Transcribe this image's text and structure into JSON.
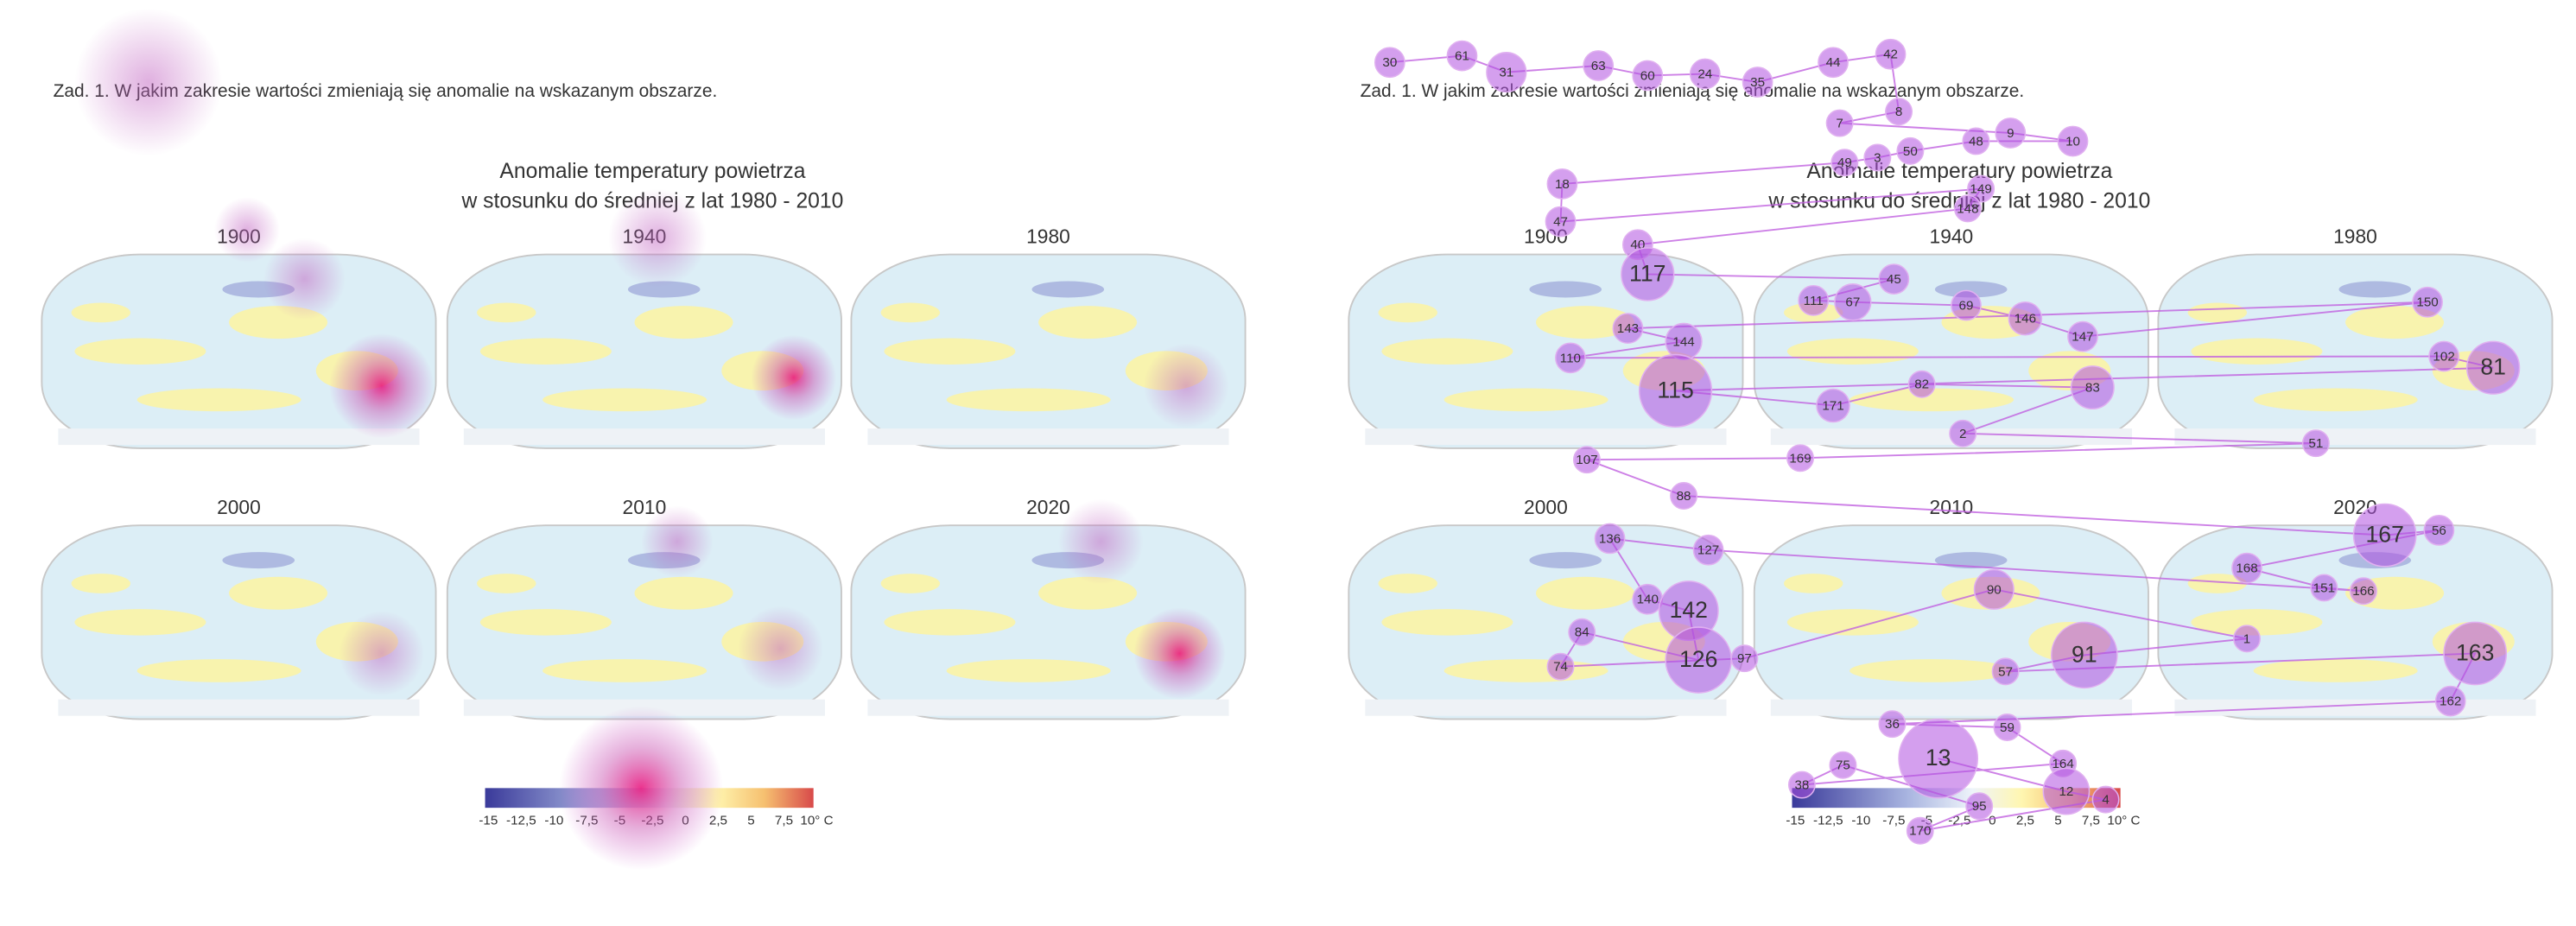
{
  "task": "Zad. 1. W jakim zakresie wartości zmieniają się anomalie na wskazanym obszarze.",
  "title_lines": [
    "Anomalie temperatury powietrza",
    "w stosunku do średniej z lat 1980 - 2010"
  ],
  "maps": [
    "1900",
    "1940",
    "1980",
    "2000",
    "2010",
    "2020"
  ],
  "legend_ticks": [
    "-15",
    "-12,5",
    "-10",
    "-7,5",
    "-5",
    "-2,5",
    "0",
    "2,5",
    "5",
    "7,5",
    "10° C"
  ],
  "fixations": [
    "30",
    "61",
    "31",
    "63",
    "60",
    "24",
    "35",
    "44",
    "42",
    "8",
    "7",
    "9",
    "10",
    "48",
    "50",
    "3",
    "49",
    "18",
    "47",
    "149",
    "148",
    "40",
    "117",
    "45",
    "111",
    "67",
    "69",
    "146",
    "147",
    "150",
    "143",
    "144",
    "110",
    "102",
    "81",
    "115",
    "171",
    "82",
    "83",
    "2",
    "51",
    "169",
    "107",
    "88",
    "167",
    "56",
    "168",
    "151",
    "166",
    "127",
    "136",
    "140",
    "142",
    "126",
    "84",
    "74",
    "97",
    "90",
    "1",
    "91",
    "57",
    "163",
    "162",
    "36",
    "59",
    "164",
    "38",
    "75",
    "95",
    "170",
    "4",
    "12",
    "13"
  ]
}
